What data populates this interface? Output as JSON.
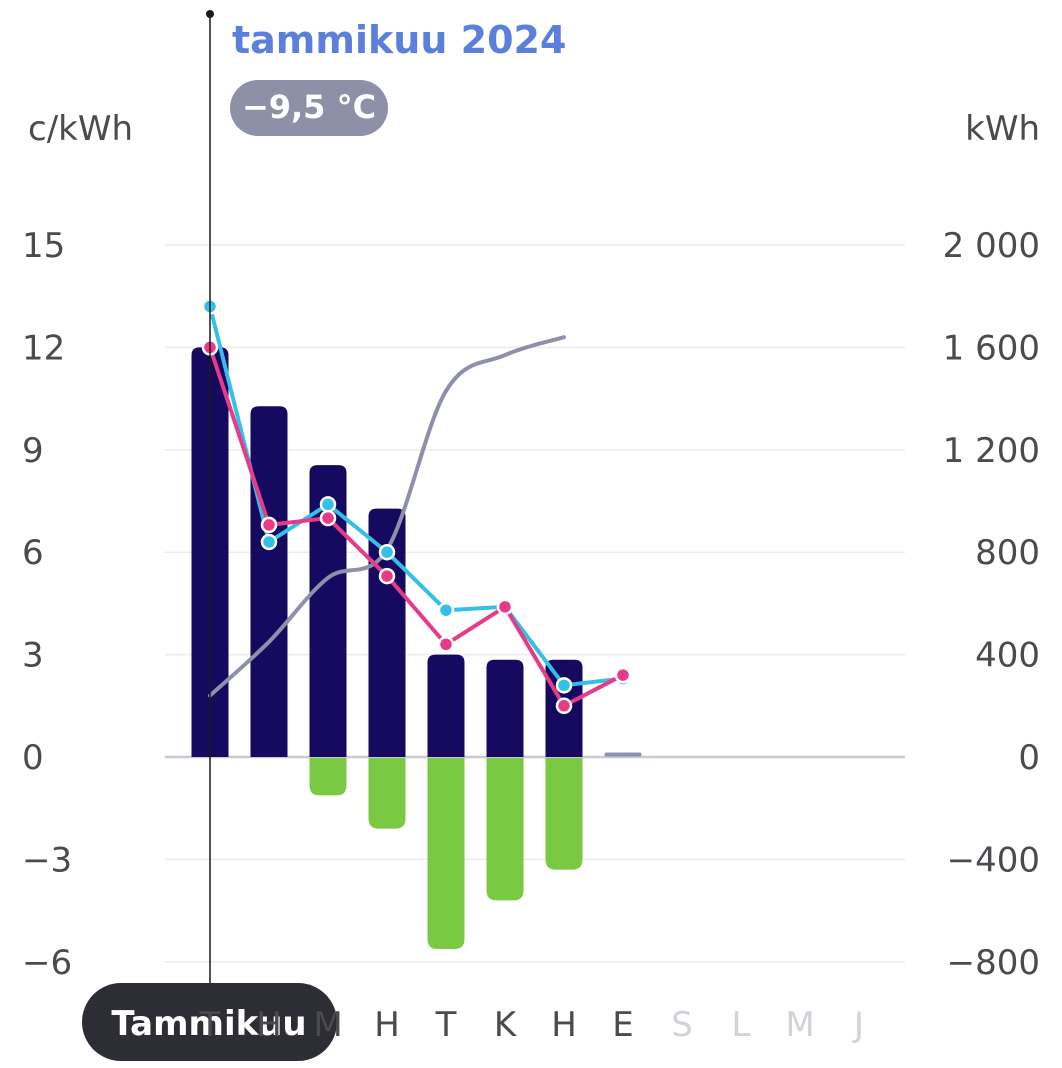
{
  "header": {
    "title": "tammikuu 2024",
    "temperature": "−9,5 °C"
  },
  "colors": {
    "title": "#5b7fdb",
    "badge": "#8e90a8",
    "consumption_bar": "#150960",
    "production_bar": "#7ac943",
    "price_line_cyan": "#33bfe8",
    "price_line_pink": "#e73b8a",
    "cumulative_line": "#8e90ab",
    "grid": "#ececf0",
    "zero_line": "#c9c9d2",
    "cursor": "#1a1a1a",
    "pill": "#2d2d35",
    "month_active": "#4a4a4f",
    "month_inactive": "#d2d2d8"
  },
  "selected_month_label": "Tammikuu",
  "chart_data": {
    "type": "bar",
    "left_axis": {
      "label": "c/kWh",
      "ticks": [
        "15",
        "12",
        "9",
        "6",
        "3",
        "0",
        "−3",
        "−6"
      ],
      "ylim": [
        -6,
        15
      ]
    },
    "right_axis": {
      "label": "kWh",
      "ticks": [
        "2 000",
        "1 600",
        "1 200",
        "800",
        "400",
        "0",
        "−400",
        "−800"
      ],
      "ylim": [
        -800,
        2000
      ]
    },
    "categories": [
      "T",
      "H",
      "M",
      "H",
      "T",
      "K",
      "H",
      "E",
      "S",
      "L",
      "M",
      "J"
    ],
    "category_active": [
      true,
      true,
      true,
      true,
      true,
      true,
      true,
      true,
      false,
      false,
      false,
      false
    ],
    "series": [
      {
        "kind": "bar",
        "axis": "right",
        "values": [
          1600,
          1370,
          1140,
          970,
          400,
          380,
          380,
          10,
          null,
          null,
          null,
          null
        ]
      },
      {
        "kind": "bar",
        "axis": "right",
        "values": [
          0,
          0,
          -150,
          -280,
          -750,
          -560,
          -440,
          0,
          null,
          null,
          null,
          null
        ]
      },
      {
        "kind": "line",
        "axis": "left",
        "color": "cyan",
        "values": [
          13.2,
          6.3,
          7.4,
          6.0,
          4.3,
          4.4,
          2.1,
          2.3,
          null,
          null,
          null,
          null
        ]
      },
      {
        "kind": "line",
        "axis": "left",
        "color": "pink",
        "values": [
          12.0,
          6.8,
          7.0,
          5.3,
          3.3,
          4.4,
          1.5,
          2.4,
          null,
          null,
          null,
          null
        ]
      },
      {
        "kind": "curve",
        "axis": "right",
        "values": [
          240,
          450,
          700,
          810,
          1430,
          1570,
          1640,
          null,
          null,
          null,
          null,
          null
        ]
      }
    ]
  }
}
